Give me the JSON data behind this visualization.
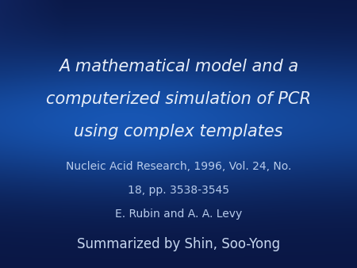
{
  "title_line1": "A mathematical model and a",
  "title_line2": "computerized simulation of PCR",
  "title_line3": "using complex templates",
  "subtitle_line1": "Nucleic Acid Research, 1996, Vol. 24, No.",
  "subtitle_line2": "18, pp. 3538-3545",
  "subtitle_line3": "E. Rubin and A. A. Levy",
  "footer": "Summarized by Shin, Soo-Yong",
  "title_color": "#e8eef8",
  "subtitle_color": "#b8ccec",
  "footer_color": "#c8d8f0",
  "title_fontsize": 15,
  "subtitle_fontsize": 10,
  "footer_fontsize": 12
}
